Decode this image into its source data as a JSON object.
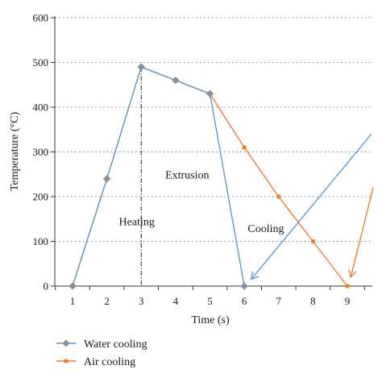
{
  "chart_data": {
    "type": "line",
    "xlabel": "Time (s)",
    "ylabel": "Temperature (°C)",
    "xlim": [
      0.5,
      9.7
    ],
    "ylim": [
      0,
      600
    ],
    "x_ticks": [
      1,
      2,
      3,
      4,
      5,
      6,
      7,
      8,
      9
    ],
    "y_ticks": [
      0,
      100,
      200,
      300,
      400,
      500,
      600
    ],
    "grid": "horizontal dotted",
    "legend_position": "bottom-left",
    "series": [
      {
        "name": "Water cooling",
        "color": "#5b9bd5",
        "marker": "diamond",
        "x": [
          1,
          2,
          3,
          4,
          5,
          6
        ],
        "y": [
          0,
          240,
          490,
          460,
          430,
          0
        ]
      },
      {
        "name": "Air cooling",
        "color": "#ed7d31",
        "marker": "square",
        "x": [
          1,
          2,
          3,
          4,
          5,
          6,
          7,
          8,
          9
        ],
        "y": [
          0,
          240,
          490,
          460,
          430,
          310,
          200,
          100,
          0
        ]
      }
    ],
    "annotations": [
      {
        "text": "Heating",
        "x": 2.35,
        "y": 145
      },
      {
        "text": "Extrusion",
        "x": 3.7,
        "y": 250
      },
      {
        "text": "Cooling",
        "x": 6.1,
        "y": 130
      }
    ],
    "phase_line": {
      "x": 3,
      "style": "dash-dot"
    },
    "arrows": [
      {
        "color": "#5b9bd5",
        "from": [
          9.7,
          340
        ],
        "to": [
          6.2,
          15
        ]
      },
      {
        "color": "#ed7d31",
        "from": [
          9.75,
          220
        ],
        "to": [
          9.1,
          20
        ]
      }
    ]
  }
}
